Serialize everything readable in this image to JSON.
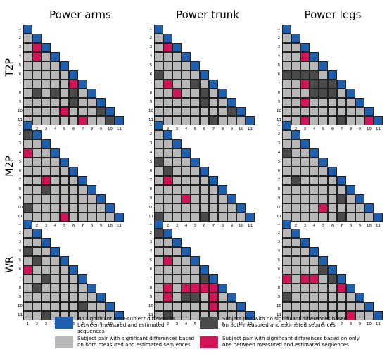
{
  "columns": [
    "Power arms",
    "Power trunk",
    "Power legs"
  ],
  "rows": [
    "T2P",
    "M2P",
    "WR"
  ],
  "tick_labels": [
    "1",
    "2",
    "3",
    "4",
    "5",
    "6",
    "7",
    "8",
    "9",
    "10",
    "11"
  ],
  "colors": {
    "blue": "#1f5fb0",
    "dark": "#4a4a4a",
    "light": "#b8b8b8",
    "pink": "#d4145a"
  },
  "legend": [
    {
      "key": "blue",
      "text": "No significant intra-subject differences between measured and estimated sequences"
    },
    {
      "key": "dark",
      "text": "Subject pair with no significant differences based on both measured and estimated sequences"
    },
    {
      "key": "light",
      "text": "Subject pair with significant differences based on both measured and estimated sequences"
    },
    {
      "key": "pink",
      "text": "Subject pair with significant differences based on only one between measured and estimated sequences"
    }
  ],
  "panels": [
    {
      "row": "T2P",
      "col": "Power arms",
      "cells": [
        "b",
        "",
        "",
        "",
        "",
        "",
        "",
        "",
        "",
        "",
        "",
        "l",
        "b",
        "",
        "",
        "",
        "",
        "",
        "",
        "",
        "",
        "",
        "l",
        "p",
        "b",
        "",
        "",
        "",
        "",
        "",
        "",
        "",
        "",
        "l",
        "p",
        "l",
        "b",
        "",
        "",
        "",
        "",
        "",
        "",
        "",
        "l",
        "l",
        "l",
        "l",
        "b",
        "",
        "",
        "",
        "",
        "",
        "",
        "l",
        "l",
        "l",
        "l",
        "l",
        "b",
        "",
        "",
        "",
        "",
        "",
        "l",
        "l",
        "l",
        "l",
        "l",
        "p",
        "b",
        "",
        "",
        "",
        "",
        "l",
        "d",
        "l",
        "d",
        "l",
        "d",
        "l",
        "b",
        "",
        "",
        "",
        "l",
        "l",
        "l",
        "l",
        "l",
        "d",
        "l",
        "l",
        "b",
        "",
        "",
        "l",
        "l",
        "l",
        "l",
        "p",
        "l",
        "l",
        "l",
        "d",
        "b",
        "",
        "l",
        "l",
        "l",
        "l",
        "l",
        "l",
        "p",
        "l",
        "l",
        "d",
        "b"
      ]
    },
    {
      "row": "T2P",
      "col": "Power trunk",
      "cells": [
        "b",
        "",
        "",
        "",
        "",
        "",
        "",
        "",
        "",
        "",
        "",
        "l",
        "b",
        "",
        "",
        "",
        "",
        "",
        "",
        "",
        "",
        "",
        "l",
        "p",
        "b",
        "",
        "",
        "",
        "",
        "",
        "",
        "",
        "",
        "l",
        "l",
        "l",
        "b",
        "",
        "",
        "",
        "",
        "",
        "",
        "",
        "l",
        "l",
        "l",
        "l",
        "b",
        "",
        "",
        "",
        "",
        "",
        "",
        "d",
        "l",
        "l",
        "l",
        "l",
        "b",
        "",
        "",
        "",
        "",
        "",
        "l",
        "p",
        "l",
        "l",
        "d",
        "l",
        "b",
        "",
        "",
        "",
        "",
        "l",
        "l",
        "p",
        "l",
        "l",
        "d",
        "l",
        "b",
        "",
        "",
        "",
        "l",
        "l",
        "l",
        "l",
        "l",
        "d",
        "l",
        "l",
        "b",
        "",
        "",
        "l",
        "l",
        "l",
        "l",
        "l",
        "l",
        "l",
        "l",
        "d",
        "b",
        "",
        "l",
        "l",
        "l",
        "l",
        "l",
        "l",
        "d",
        "l",
        "l",
        "l",
        "b"
      ]
    },
    {
      "row": "T2P",
      "col": "Power legs",
      "cells": [
        "b",
        "",
        "",
        "",
        "",
        "",
        "",
        "",
        "",
        "",
        "",
        "l",
        "b",
        "",
        "",
        "",
        "",
        "",
        "",
        "",
        "",
        "",
        "l",
        "l",
        "b",
        "",
        "",
        "",
        "",
        "",
        "",
        "",
        "",
        "l",
        "l",
        "p",
        "b",
        "",
        "",
        "",
        "",
        "",
        "",
        "",
        "l",
        "l",
        "l",
        "l",
        "b",
        "",
        "",
        "",
        "",
        "",
        "",
        "d",
        "d",
        "d",
        "d",
        "l",
        "b",
        "",
        "",
        "",
        "",
        "",
        "l",
        "l",
        "p",
        "d",
        "d",
        "d",
        "b",
        "",
        "",
        "",
        "",
        "l",
        "l",
        "l",
        "d",
        "d",
        "d",
        "l",
        "b",
        "",
        "",
        "",
        "l",
        "l",
        "p",
        "l",
        "l",
        "l",
        "l",
        "l",
        "b",
        "",
        "",
        "l",
        "l",
        "l",
        "l",
        "l",
        "l",
        "l",
        "l",
        "l",
        "b",
        "",
        "l",
        "l",
        "p",
        "l",
        "l",
        "l",
        "d",
        "l",
        "l",
        "p",
        "b"
      ]
    },
    {
      "row": "M2P",
      "col": "Power arms",
      "cells": [
        "b",
        "",
        "",
        "",
        "",
        "",
        "",
        "",
        "",
        "",
        "",
        "d",
        "b",
        "",
        "",
        "",
        "",
        "",
        "",
        "",
        "",
        "",
        "l",
        "l",
        "b",
        "",
        "",
        "",
        "",
        "",
        "",
        "",
        "",
        "p",
        "l",
        "l",
        "b",
        "",
        "",
        "",
        "",
        "",
        "",
        "",
        "l",
        "l",
        "l",
        "l",
        "b",
        "",
        "",
        "",
        "",
        "",
        "",
        "l",
        "l",
        "l",
        "l",
        "l",
        "b",
        "",
        "",
        "",
        "",
        "",
        "l",
        "l",
        "p",
        "l",
        "l",
        "l",
        "b",
        "",
        "",
        "",
        "",
        "l",
        "l",
        "d",
        "l",
        "l",
        "l",
        "l",
        "b",
        "",
        "",
        "",
        "l",
        "l",
        "l",
        "l",
        "l",
        "l",
        "l",
        "l",
        "b",
        "",
        "",
        "d",
        "l",
        "l",
        "l",
        "l",
        "l",
        "l",
        "l",
        "l",
        "b",
        "",
        "l",
        "l",
        "l",
        "l",
        "p",
        "l",
        "l",
        "l",
        "l",
        "l",
        "b"
      ]
    },
    {
      "row": "M2P",
      "col": "Power trunk",
      "cells": [
        "b",
        "",
        "",
        "",
        "",
        "",
        "",
        "",
        "",
        "",
        "",
        "l",
        "b",
        "",
        "",
        "",
        "",
        "",
        "",
        "",
        "",
        "",
        "l",
        "l",
        "b",
        "",
        "",
        "",
        "",
        "",
        "",
        "",
        "",
        "l",
        "l",
        "l",
        "b",
        "",
        "",
        "",
        "",
        "",
        "",
        "",
        "d",
        "l",
        "l",
        "l",
        "b",
        "",
        "",
        "",
        "",
        "",
        "",
        "l",
        "d",
        "l",
        "l",
        "l",
        "b",
        "",
        "",
        "",
        "",
        "",
        "l",
        "p",
        "l",
        "l",
        "l",
        "l",
        "b",
        "",
        "",
        "",
        "",
        "l",
        "l",
        "l",
        "l",
        "l",
        "l",
        "l",
        "b",
        "",
        "",
        "",
        "l",
        "l",
        "l",
        "p",
        "l",
        "l",
        "l",
        "l",
        "b",
        "",
        "",
        "l",
        "l",
        "l",
        "l",
        "l",
        "l",
        "l",
        "l",
        "l",
        "b",
        "",
        "d",
        "l",
        "l",
        "l",
        "l",
        "d",
        "l",
        "l",
        "l",
        "l",
        "b"
      ]
    },
    {
      "row": "M2P",
      "col": "Power legs",
      "cells": [
        "b",
        "",
        "",
        "",
        "",
        "",
        "",
        "",
        "",
        "",
        "",
        "l",
        "b",
        "",
        "",
        "",
        "",
        "",
        "",
        "",
        "",
        "",
        "l",
        "l",
        "b",
        "",
        "",
        "",
        "",
        "",
        "",
        "",
        "",
        "d",
        "l",
        "l",
        "b",
        "",
        "",
        "",
        "",
        "",
        "",
        "",
        "l",
        "l",
        "l",
        "l",
        "b",
        "",
        "",
        "",
        "",
        "",
        "",
        "l",
        "l",
        "l",
        "l",
        "l",
        "b",
        "",
        "",
        "",
        "",
        "",
        "l",
        "d",
        "l",
        "l",
        "l",
        "l",
        "b",
        "",
        "",
        "",
        "",
        "l",
        "l",
        "l",
        "l",
        "l",
        "l",
        "l",
        "b",
        "",
        "",
        "",
        "l",
        "l",
        "l",
        "l",
        "l",
        "l",
        "d",
        "l",
        "b",
        "",
        "",
        "l",
        "l",
        "l",
        "l",
        "p",
        "l",
        "l",
        "l",
        "l",
        "b",
        "",
        "l",
        "l",
        "l",
        "l",
        "l",
        "l",
        "d",
        "l",
        "l",
        "l",
        "b"
      ]
    },
    {
      "row": "WR",
      "col": "Power arms",
      "cells": [
        "b",
        "",
        "",
        "",
        "",
        "",
        "",
        "",
        "",
        "",
        "",
        "l",
        "b",
        "",
        "",
        "",
        "",
        "",
        "",
        "",
        "",
        "",
        "l",
        "l",
        "b",
        "",
        "",
        "",
        "",
        "",
        "",
        "",
        "",
        "d",
        "l",
        "l",
        "b",
        "",
        "",
        "",
        "",
        "",
        "",
        "",
        "l",
        "d",
        "l",
        "l",
        "b",
        "",
        "",
        "",
        "",
        "",
        "",
        "p",
        "l",
        "l",
        "l",
        "l",
        "b",
        "",
        "",
        "",
        "",
        "",
        "l",
        "l",
        "d",
        "l",
        "l",
        "l",
        "b",
        "",
        "",
        "",
        "",
        "l",
        "d",
        "l",
        "l",
        "l",
        "l",
        "l",
        "b",
        "",
        "",
        "",
        "l",
        "l",
        "l",
        "l",
        "l",
        "l",
        "l",
        "l",
        "b",
        "",
        "",
        "l",
        "l",
        "l",
        "l",
        "l",
        "l",
        "d",
        "l",
        "l",
        "b",
        "",
        "l",
        "l",
        "d",
        "l",
        "l",
        "l",
        "l",
        "l",
        "l",
        "l",
        "b"
      ]
    },
    {
      "row": "WR",
      "col": "Power trunk",
      "cells": [
        "b",
        "",
        "",
        "",
        "",
        "",
        "",
        "",
        "",
        "",
        "",
        "d",
        "b",
        "",
        "",
        "",
        "",
        "",
        "",
        "",
        "",
        "",
        "l",
        "l",
        "b",
        "",
        "",
        "",
        "",
        "",
        "",
        "",
        "",
        "l",
        "l",
        "l",
        "b",
        "",
        "",
        "",
        "",
        "",
        "",
        "",
        "l",
        "p",
        "l",
        "l",
        "b",
        "",
        "",
        "",
        "",
        "",
        "",
        "l",
        "l",
        "l",
        "l",
        "l",
        "b",
        "",
        "",
        "",
        "",
        "",
        "l",
        "l",
        "l",
        "l",
        "l",
        "d",
        "b",
        "",
        "",
        "",
        "",
        "l",
        "p",
        "l",
        "p",
        "p",
        "p",
        "p",
        "b",
        "",
        "",
        "",
        "l",
        "p",
        "l",
        "d",
        "d",
        "l",
        "p",
        "l",
        "b",
        "",
        "",
        "l",
        "l",
        "l",
        "l",
        "l",
        "l",
        "p",
        "l",
        "l",
        "b",
        "",
        "l",
        "d",
        "l",
        "l",
        "l",
        "l",
        "l",
        "l",
        "l",
        "l",
        "b"
      ]
    },
    {
      "row": "WR",
      "col": "Power legs",
      "cells": [
        "b",
        "",
        "",
        "",
        "",
        "",
        "",
        "",
        "",
        "",
        "",
        "l",
        "b",
        "",
        "",
        "",
        "",
        "",
        "",
        "",
        "",
        "",
        "l",
        "l",
        "b",
        "",
        "",
        "",
        "",
        "",
        "",
        "",
        "",
        "l",
        "l",
        "l",
        "b",
        "",
        "",
        "",
        "",
        "",
        "",
        "",
        "l",
        "l",
        "l",
        "l",
        "b",
        "",
        "",
        "",
        "",
        "",
        "",
        "l",
        "l",
        "l",
        "l",
        "d",
        "b",
        "",
        "",
        "",
        "",
        "",
        "p",
        "l",
        "p",
        "p",
        "l",
        "d",
        "b",
        "",
        "",
        "",
        "",
        "l",
        "l",
        "l",
        "l",
        "l",
        "l",
        "p",
        "b",
        "",
        "",
        "",
        "d",
        "l",
        "l",
        "l",
        "l",
        "l",
        "l",
        "l",
        "b",
        "",
        "",
        "l",
        "l",
        "l",
        "l",
        "l",
        "l",
        "l",
        "l",
        "l",
        "b",
        "",
        "l",
        "l",
        "l",
        "l",
        "l",
        "l",
        "l",
        "p",
        "l",
        "l",
        "b"
      ]
    }
  ]
}
